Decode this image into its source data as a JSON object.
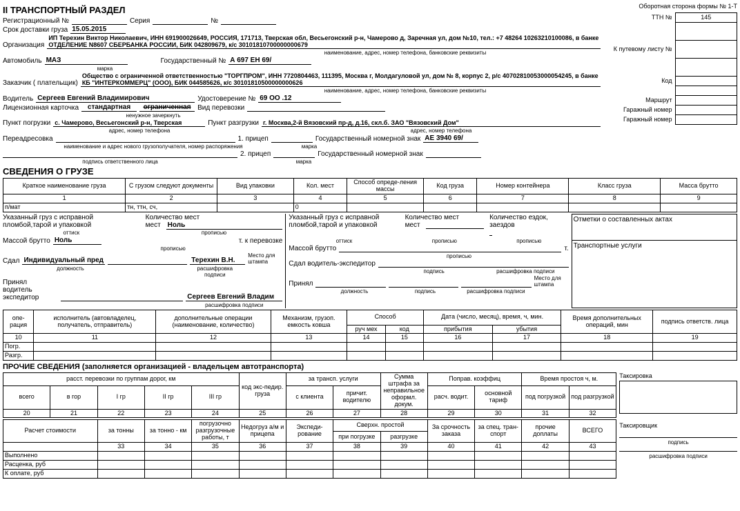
{
  "header": {
    "section_title": "II ТРАНСПОРТНЫЙ РАЗДЕЛ",
    "form_note": "Оборотная сторона формы № 1-Т",
    "reg_lbl": "Регистрационный №",
    "seria_lbl": "Серия",
    "num_lbl": "№",
    "ttn_lbl": "ТТН №",
    "ttn_val": "145",
    "delivery_lbl": "Срок доставки груза",
    "delivery_date": "15.05.2015",
    "org_lbl": "Организация",
    "org_val": "ИП Терехин Виктор Николаевич, ИНН 691900026649, РОССИЯ, 171713, Тверская обл, Весьегонский р-н, Чамерово д, Заречная ул, дом №10, тел.: +7 48264 10263210100086, в банке ОТДЕЛЕНИЕ N8607 СБЕРБАНКА РОССИИ, БИК 042809679, к/с 30101810700000000679",
    "org_sub": "наименование, адрес, номер телефона, банковские реквизиты",
    "auto_lbl": "Автомобиль",
    "auto_val": "МАЗ",
    "auto_sub": "марка",
    "gos_lbl": "Государственный №",
    "gos_val": "А 697 ЕН 69/",
    "putlist_lbl": "К путевому листу №",
    "customer_lbl": "Заказчик ( плательщик)",
    "customer_val": "Общество с ограниченной ответственностью \"ТОРГПРОМ\", ИНН 7720804463, 111395, Москва г, Молдагуловой ул, дом № 8, корпус 2, р/с 40702810053000054245, в банке КБ \"ИНТЕРКОММЕРЦ\" (ООО), БИК 044585626, к/с 30101810500000000626",
    "customer_sub": "наименование, адрес, номер телефона, банковские реквизиты",
    "driver_lbl": "Водитель",
    "driver_val": "Сергеев Евгений Владимирович",
    "udost_lbl": "Удостоверение №",
    "udost_val": "69 ОО          .12",
    "lic_lbl": "Лицензионная карточка",
    "lic_std": "стандартная",
    "lic_lim": "ограниченная",
    "lic_sub": "ненужное зачеркнуть",
    "vid_lbl": "Вид перевозки",
    "load_lbl": "Пункт погрузки",
    "load_val": "с. Чамерово, Весьегонский р-н, Тверская",
    "unload_lbl": "Пункт разгрузки",
    "unload_val": "г. Москва,2-й Вязовский пр-д, д.16, скл.б. ЗАО \"Вязовский Дом\"",
    "addr_sub": "адрес, номер телефона",
    "readdr_lbl": "Переадресовка",
    "readdr_sub1": "наименование и адрес нового грузополучателя, номер распоряжения",
    "readdr_sub2": "подпись ответственного лица",
    "trailer1_lbl": "1. прицеп",
    "trailer2_lbl": "2. прицеп",
    "trailer_sub": "марка",
    "gosnomer_lbl": "Государственный номерной знак",
    "gosnomer_val": "АЕ 3940 69/",
    "kod_lbl": "Код",
    "marshrut_lbl": "Маршрут",
    "garage_lbl": "Гаражный номер"
  },
  "cargo": {
    "title": "СВЕДЕНИЯ О ГРУЗЕ",
    "cols": [
      "Краткое наименование груза",
      "С грузом следуют документы",
      "Вид упаковки",
      "Кол. мест",
      "Способ опреде-ления массы",
      "Код груза",
      "Номер контейнера",
      "Класс груза",
      "Масса брутто"
    ],
    "nums": [
      "1",
      "2",
      "3",
      "4",
      "5",
      "6",
      "7",
      "8",
      "9"
    ],
    "row": [
      "п/мат",
      "тн, ттн, сч,",
      "",
      "0",
      "",
      "",
      "",
      "",
      ""
    ]
  },
  "cargo_sig": {
    "line1_left": "Указанный груз с исправной пломбой,тарой и упаковкой",
    "qty_lbl": "Количество мест",
    "qty_val": "Ноль",
    "ottisk": "оттиск",
    "propis": "прописью",
    "mass_lbl": "Массой брутто",
    "mass_val": "Ноль",
    "perevoz": "т. к перевозке",
    "t_only": "т.",
    "sdal_lbl": "Сдал",
    "sdal_val": "Индивидуальный пред",
    "sdal_name": "Терехин В.Н.",
    "dolzh": "должность",
    "rash": "расшифровка подписи",
    "stamp": "Место для штампа",
    "prin_lbl": "Принял водитель экспедитор",
    "prin_val": "Сергеев Евгений Владим",
    "line1_right": "Указанный груз с исправной пломбой,тарой и упаковкой",
    "ezd_lbl": "Количество ездок, заездов",
    "sdal_vod": "Сдал водитель-экспедитор",
    "podpis": "подпись",
    "prinyal": "Принял",
    "otmetki": "Отметки о составленных актах",
    "trans_usl": "Транспортные услуги"
  },
  "ops": {
    "cols": [
      "опе-рация",
      "исполнитель (автовладелец, получатель, отправитель)",
      "дополнительные операции (наименование, количество)",
      "Механизм, грузоп. емкость ковша",
      "Способ",
      "",
      "Дата (число, месяц), время, ч, мин.",
      "",
      "Время дополнительных операций, мин",
      "подпись ответств. лица"
    ],
    "sub": [
      "",
      "",
      "",
      "",
      "руч мех",
      "код",
      "прибытия",
      "убытия",
      "",
      ""
    ],
    "nums": [
      "10",
      "11",
      "12",
      "13",
      "14",
      "15",
      "16",
      "17",
      "18",
      "19"
    ],
    "rows": [
      "Погр.",
      "Разгр."
    ]
  },
  "other": {
    "title": "ПРОЧИЕ СВЕДЕНИЯ (заполняется организацией - владельцем автотранспорта)",
    "dist_hdr": "расст. перевозки по группам дорог, км",
    "dist_cols": [
      "всего",
      "в гор",
      "I гр",
      "II гр",
      "III гр"
    ],
    "kod_eksp": "код экс-педир. груза",
    "trans_usl": "за трансп. услуги",
    "trans_sub": [
      "с клиента",
      "причит. водителю"
    ],
    "shtraf": "Сумма штрафа за неправильное оформл. докум.",
    "koef": "Поправ. коэффиц",
    "koef_sub": [
      "расч. водит.",
      "основной тариф"
    ],
    "prostoi": "Время простоя ч, м.",
    "prostoi_sub": [
      "под погрузкой",
      "под разгрузкой"
    ],
    "taks": "Таксировка",
    "nums1": [
      "20",
      "21",
      "22",
      "23",
      "24",
      "25",
      "26",
      "27",
      "28",
      "29",
      "30",
      "31",
      "32"
    ],
    "calc_cols": [
      "Расчет стоимости",
      "за тонны",
      "за тонно - км",
      "погрузочно разгрузочные работы, т",
      "Недогруз а/м и прицепа",
      "Экспеди-рование",
      "Сверхн. простой",
      "",
      "За срочность заказа",
      "за спец. тран-спорт",
      "прочие доплаты",
      "ВСЕГО"
    ],
    "calc_sub": [
      "",
      "",
      "",
      "",
      "",
      "",
      "при погрузке",
      "разгрузке",
      "",
      "",
      "",
      ""
    ],
    "nums2": [
      "",
      "33",
      "34",
      "35",
      "36",
      "37",
      "38",
      "39",
      "40",
      "41",
      "42",
      "43"
    ],
    "rows2": [
      "Выполнено",
      "Расценка, руб",
      "К оплате, руб"
    ],
    "taksir": "Таксировщик",
    "podpis": "подпись",
    "rash": "расшифровка подписи"
  }
}
